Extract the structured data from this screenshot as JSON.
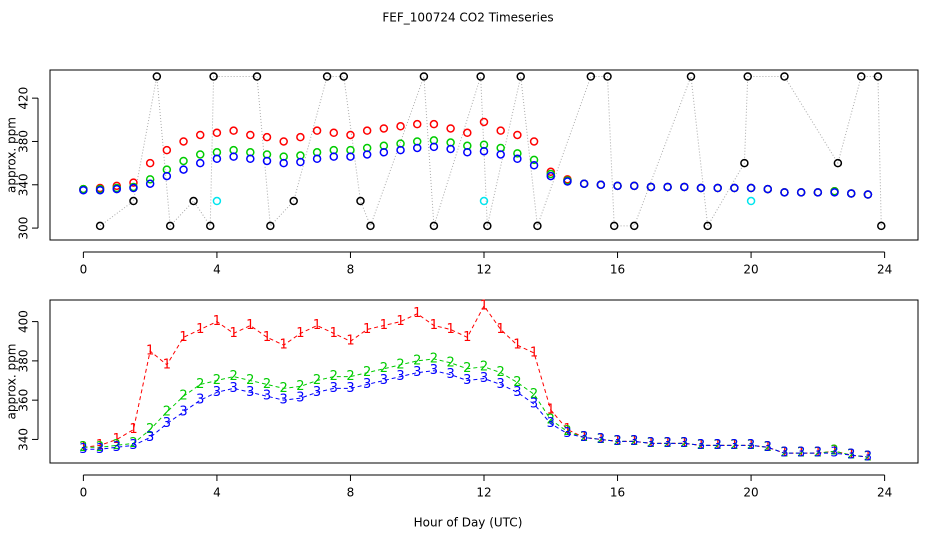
{
  "title": "FEF_100724  CO2 Timeseries",
  "xlabel": "Hour of Day (UTC)",
  "chart_data": [
    {
      "type": "scatter",
      "ylabel": "approx. ppm",
      "xlim": [
        -1,
        25
      ],
      "xticks": [
        0,
        4,
        8,
        12,
        16,
        20,
        24
      ],
      "ylim": [
        289,
        446
      ],
      "yticks": [
        300,
        340,
        380,
        420
      ],
      "x": [
        0,
        0.5,
        1,
        1.5,
        2,
        2.5,
        3,
        3.5,
        4,
        4.5,
        5,
        5.5,
        6,
        6.5,
        7,
        7.5,
        8,
        8.5,
        9,
        9.5,
        10,
        10.5,
        11,
        11.5,
        12,
        12.5,
        13,
        13.5,
        14,
        14.5,
        15,
        15.5,
        16,
        16.5,
        17,
        17.5,
        18,
        18.5,
        19,
        19.5,
        20,
        20.5,
        21,
        21.5,
        22,
        22.5,
        23,
        23.5
      ],
      "series": [
        {
          "color": "#ff0000",
          "values": [
            336,
            337,
            339,
            342,
            360,
            372,
            380,
            386,
            388,
            390,
            386,
            384,
            380,
            384,
            390,
            388,
            386,
            390,
            392,
            394,
            396,
            396,
            392,
            388,
            398,
            390,
            386,
            380,
            352,
            345,
            341,
            340,
            339,
            339,
            338,
            338,
            338,
            337,
            337,
            337,
            337,
            336,
            333,
            333,
            333,
            334,
            332,
            331
          ]
        },
        {
          "color": "#00cc00",
          "values": [
            336,
            336,
            337,
            338,
            345,
            354,
            362,
            368,
            370,
            372,
            370,
            368,
            366,
            367,
            370,
            372,
            372,
            374,
            376,
            378,
            380,
            381,
            379,
            376,
            377,
            374,
            369,
            363,
            350,
            344,
            341,
            340,
            339,
            339,
            338,
            338,
            338,
            337,
            337,
            337,
            337,
            336,
            333,
            333,
            333,
            334,
            332,
            331
          ]
        },
        {
          "color": "#0000ff",
          "values": [
            335,
            335,
            336,
            337,
            341,
            348,
            354,
            360,
            364,
            366,
            364,
            362,
            360,
            361,
            364,
            366,
            366,
            368,
            370,
            372,
            374,
            375,
            373,
            370,
            371,
            368,
            364,
            358,
            348,
            343,
            341,
            340,
            339,
            339,
            338,
            338,
            338,
            337,
            337,
            337,
            337,
            336,
            333,
            333,
            333,
            333,
            332,
            331
          ]
        }
      ],
      "flagged": {
        "color": "#000000",
        "x": [
          0.5,
          1.5,
          2.2,
          2.6,
          3.3,
          3.8,
          3.9,
          5.2,
          5.6,
          6.3,
          7.3,
          7.8,
          8.3,
          8.6,
          10.2,
          10.5,
          11.9,
          12.1,
          13.1,
          13.6,
          15.2,
          15.7,
          15.9,
          16.5,
          18.2,
          18.7,
          19.8,
          19.9,
          21,
          22.6,
          23.3,
          23.8,
          23.9
        ],
        "values": [
          302,
          325,
          440,
          302,
          325,
          302,
          440,
          440,
          302,
          325,
          440,
          440,
          325,
          302,
          440,
          302,
          440,
          302,
          440,
          302,
          440,
          440,
          302,
          302,
          440,
          302,
          360,
          440,
          440,
          360,
          440,
          440,
          302
        ]
      },
      "cyan": {
        "color": "#00e5ee",
        "x": [
          4,
          12,
          20
        ],
        "values": [
          325,
          325,
          325
        ]
      }
    },
    {
      "type": "line",
      "ylabel": "approx. ppm",
      "xlim": [
        -1,
        25
      ],
      "xticks": [
        0,
        4,
        8,
        12,
        16,
        20,
        24
      ],
      "ylim": [
        328,
        411
      ],
      "yticks": [
        340,
        360,
        380,
        400
      ],
      "x": [
        0,
        0.5,
        1,
        1.5,
        2,
        2.5,
        3,
        3.5,
        4,
        4.5,
        5,
        5.5,
        6,
        6.5,
        7,
        7.5,
        8,
        8.5,
        9,
        9.5,
        10,
        10.5,
        11,
        11.5,
        12,
        12.5,
        13,
        13.5,
        14,
        14.5,
        15,
        15.5,
        16,
        16.5,
        17,
        17.5,
        18,
        18.5,
        19,
        19.5,
        20,
        20.5,
        21,
        21.5,
        22,
        22.5,
        23,
        23.5
      ],
      "series": [
        {
          "name": "1",
          "color": "#ff0000",
          "values": [
            336,
            337,
            340,
            345,
            385,
            378,
            392,
            396,
            400,
            394,
            398,
            392,
            388,
            394,
            398,
            394,
            390,
            396,
            398,
            400,
            404,
            398,
            396,
            392,
            408,
            396,
            388,
            384,
            355,
            345,
            341,
            340,
            339,
            339,
            338,
            338,
            338,
            337,
            337,
            337,
            337,
            336,
            333,
            333,
            333,
            334,
            332,
            331
          ]
        },
        {
          "name": "2",
          "color": "#00cc00",
          "values": [
            336,
            336,
            337,
            338,
            345,
            354,
            362,
            368,
            370,
            372,
            370,
            368,
            366,
            367,
            370,
            372,
            372,
            374,
            376,
            378,
            380,
            381,
            379,
            376,
            377,
            374,
            369,
            363,
            350,
            344,
            341,
            340,
            339,
            339,
            338,
            338,
            338,
            337,
            337,
            337,
            337,
            336,
            333,
            333,
            333,
            334,
            332,
            331
          ]
        },
        {
          "name": "3",
          "color": "#0000ff",
          "values": [
            335,
            335,
            336,
            337,
            341,
            348,
            354,
            360,
            364,
            366,
            364,
            362,
            360,
            361,
            364,
            366,
            366,
            368,
            370,
            372,
            374,
            375,
            373,
            370,
            371,
            368,
            364,
            358,
            348,
            343,
            341,
            340,
            339,
            339,
            338,
            338,
            338,
            337,
            337,
            337,
            337,
            336,
            333,
            333,
            333,
            333,
            332,
            331
          ]
        }
      ]
    }
  ]
}
